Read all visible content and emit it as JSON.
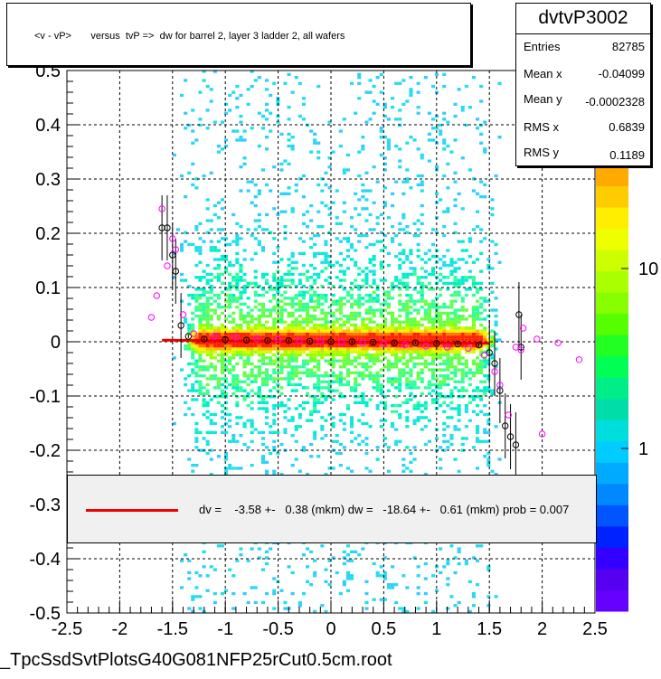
{
  "title": "<v - vP>       versus  tvP =>  dw for barrel 2, layer 3 ladder 2, all wafers",
  "stats": {
    "name": "dvtvP3002",
    "rows": [
      {
        "label": "Entries",
        "value": "82785"
      },
      {
        "label": "Mean x",
        "value": "-0.04099"
      },
      {
        "label": "Mean y",
        "value": "-0.0002328"
      },
      {
        "label": "RMS x",
        "value": "0.6839"
      },
      {
        "label": "RMS y",
        "value": "0.1189"
      }
    ]
  },
  "legend": {
    "text": "dv =    -3.58 +-   0.38 (mkm) dw =   -18.64 +-   0.61 (mkm) prob = 0.007",
    "line_color": "#ee0000"
  },
  "footer": "_TpcSsdSvtPlotsG40G081NFP25rCut0.5cm.root",
  "chart_data": {
    "type": "heatmap",
    "xlim": [
      -2.5,
      2.5
    ],
    "ylim": [
      -0.5,
      0.5
    ],
    "x_ticks": [
      "-2.5",
      "-2",
      "-1.5",
      "-1",
      "-0.5",
      "0",
      "0.5",
      "1",
      "1.5",
      "2",
      "2.5"
    ],
    "y_ticks": [
      "-0.5",
      "-0.4",
      "-0.3",
      "-0.2",
      "-0.1",
      "0",
      "0.1",
      "0.2",
      "0.3",
      "0.4",
      "0.5"
    ],
    "grid": true,
    "colorbar": {
      "scale": "log",
      "labels": [
        "1",
        "10"
      ],
      "top_label_partial": "0"
    },
    "fit_line": {
      "color": "#ee0000",
      "x": [
        -1.6,
        1.5
      ],
      "y": [
        0.003,
        -0.003
      ]
    },
    "profile_black": [
      {
        "x": -1.6,
        "y": 0.21
      },
      {
        "x": -1.55,
        "y": 0.21
      },
      {
        "x": -1.5,
        "y": 0.16
      },
      {
        "x": -1.47,
        "y": 0.13
      },
      {
        "x": -1.42,
        "y": 0.03
      },
      {
        "x": -1.35,
        "y": 0.01
      },
      {
        "x": -1.2,
        "y": 0.005
      },
      {
        "x": -1.0,
        "y": 0.004
      },
      {
        "x": -0.8,
        "y": 0.003
      },
      {
        "x": -0.6,
        "y": 0.002
      },
      {
        "x": -0.4,
        "y": 0.002
      },
      {
        "x": -0.2,
        "y": 0.001
      },
      {
        "x": 0.0,
        "y": 0.0
      },
      {
        "x": 0.2,
        "y": 0.0
      },
      {
        "x": 0.4,
        "y": -0.001
      },
      {
        "x": 0.6,
        "y": -0.002
      },
      {
        "x": 0.8,
        "y": -0.002
      },
      {
        "x": 1.0,
        "y": -0.003
      },
      {
        "x": 1.2,
        "y": -0.004
      },
      {
        "x": 1.4,
        "y": -0.006
      },
      {
        "x": 1.5,
        "y": -0.02
      },
      {
        "x": 1.55,
        "y": -0.04
      },
      {
        "x": 1.6,
        "y": -0.09
      },
      {
        "x": 1.65,
        "y": -0.155
      },
      {
        "x": 1.7,
        "y": -0.175
      },
      {
        "x": 1.75,
        "y": -0.19
      },
      {
        "x": 1.78,
        "y": 0.05
      },
      {
        "x": 1.8,
        "y": -0.01
      }
    ],
    "profile_magenta": [
      {
        "x": -1.7,
        "y": 0.045
      },
      {
        "x": -1.65,
        "y": 0.085
      },
      {
        "x": -1.6,
        "y": 0.245
      },
      {
        "x": -1.55,
        "y": 0.14
      },
      {
        "x": -1.5,
        "y": 0.19
      },
      {
        "x": -1.47,
        "y": 0.17
      },
      {
        "x": -1.4,
        "y": 0.05
      },
      {
        "x": -1.3,
        "y": 0.015
      },
      {
        "x": -1.1,
        "y": 0.01
      },
      {
        "x": -0.9,
        "y": 0.008
      },
      {
        "x": -0.7,
        "y": 0.006
      },
      {
        "x": -0.5,
        "y": 0.004
      },
      {
        "x": -0.3,
        "y": 0.002
      },
      {
        "x": -0.1,
        "y": 0.001
      },
      {
        "x": 0.1,
        "y": -0.001
      },
      {
        "x": 0.3,
        "y": -0.002
      },
      {
        "x": 0.5,
        "y": -0.004
      },
      {
        "x": 0.7,
        "y": -0.006
      },
      {
        "x": 0.9,
        "y": -0.008
      },
      {
        "x": 1.1,
        "y": -0.01
      },
      {
        "x": 1.3,
        "y": -0.012
      },
      {
        "x": 1.45,
        "y": -0.025
      },
      {
        "x": 1.55,
        "y": -0.055
      },
      {
        "x": 1.6,
        "y": -0.08
      },
      {
        "x": 1.68,
        "y": -0.135
      },
      {
        "x": 1.75,
        "y": -0.01
      },
      {
        "x": 1.8,
        "y": -0.015
      },
      {
        "x": 1.82,
        "y": 0.025
      },
      {
        "x": 1.95,
        "y": 0.005
      },
      {
        "x": 2.0,
        "y": -0.17
      },
      {
        "x": 2.15,
        "y": -0.002
      },
      {
        "x": 2.35,
        "y": -0.033
      }
    ]
  }
}
